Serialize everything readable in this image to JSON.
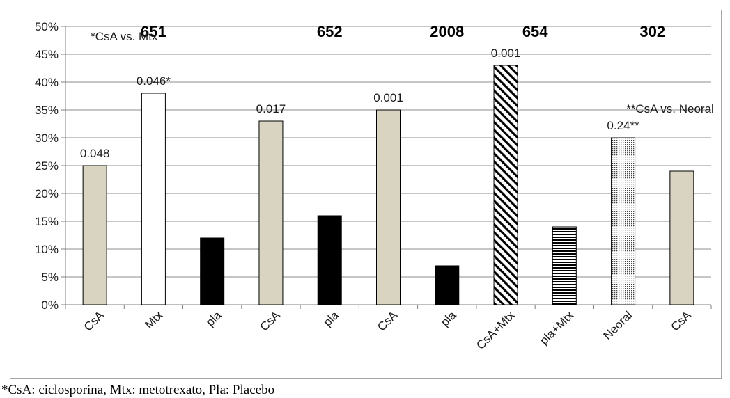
{
  "chart_data": {
    "type": "bar",
    "categories": [
      "CsA",
      "Mtx",
      "pla",
      "CsA",
      "pla",
      "CsA",
      "pla",
      "CsA+Mtx",
      "pla+Mtx",
      "Neoral",
      "CsA"
    ],
    "values": [
      25,
      38,
      12,
      33,
      16,
      35,
      7,
      43,
      14,
      30,
      24
    ],
    "fills": [
      "tan",
      "white",
      "black",
      "tan",
      "black",
      "tan",
      "black",
      "diagonal-hatch",
      "horizontal-lines",
      "dotted",
      "tan"
    ],
    "colors": {
      "tan": "#d9d3c2",
      "black": "#000000",
      "white": "#ffffff",
      "grid": "#8c8c8c"
    },
    "ylim": [
      0,
      50
    ],
    "yticks": [
      "0%",
      "5%",
      "10%",
      "15%",
      "20%",
      "25%",
      "30%",
      "35%",
      "40%",
      "45%",
      "50%"
    ],
    "grid": true,
    "group_labels": [
      {
        "text": "651",
        "over": 1
      },
      {
        "text": "652",
        "over": 4
      },
      {
        "text": "2008",
        "over": 6
      },
      {
        "text": "654",
        "over": 7.5
      },
      {
        "text": "302",
        "over": 9.5
      }
    ],
    "data_labels": [
      {
        "text": "0.048",
        "bar": 0
      },
      {
        "text": "0.046*",
        "bar": 1
      },
      {
        "text": "0.017",
        "bar": 3
      },
      {
        "text": "0.001",
        "bar": 5
      },
      {
        "text": "0.001",
        "bar": 7
      },
      {
        "text": "0.24**",
        "bar": 9
      }
    ],
    "annotations": [
      {
        "text": "*CsA vs. Mtx",
        "near_bar": 0.5,
        "at_value": 47.5
      },
      {
        "text": "**CsA vs. Neoral",
        "near_bar": 9.8,
        "at_value": 34.5
      }
    ],
    "xlabel": "",
    "ylabel": "",
    "title": ""
  },
  "footnote": "*CsA: ciclosporina, Mtx: metotrexato, Pla: Placebo"
}
